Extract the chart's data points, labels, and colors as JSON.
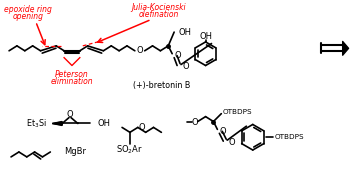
{
  "background_color": "#ffffff",
  "red": "#ff0000",
  "black": "#000000",
  "figsize": [
    3.52,
    1.89
  ],
  "dpi": 100,
  "labels": {
    "epoxide_ring": "epoxide ring",
    "opening": "opening",
    "julia": "Julia-Kocienski",
    "olefination": "olefination",
    "peterson": "Peterson",
    "elimination": "elimination",
    "bretonin": "(+)-bretonin B",
    "oh_top": "OH",
    "oh_top2": "OH",
    "oh_bottom": "OH",
    "et3si": "Et₃Si",
    "mgbr": "MgBr",
    "so2ar": "SO₂Ar",
    "otbdps1": "OTBDPS",
    "otbdps2": "OTBDPS",
    "o_label": "O"
  }
}
